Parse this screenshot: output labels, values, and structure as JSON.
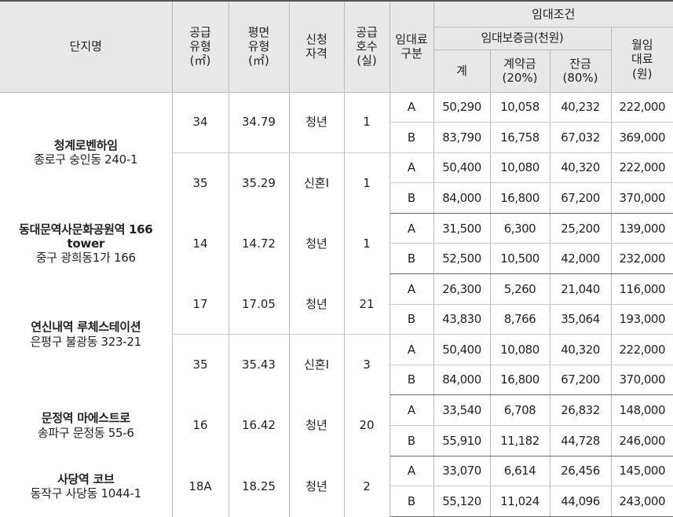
{
  "header": {
    "complex": "단지명",
    "supply_type": [
      "공급",
      "유형",
      "(㎡)"
    ],
    "floor_type": [
      "평면",
      "유형",
      "(㎡)"
    ],
    "eligibility": [
      "신청",
      "자격"
    ],
    "units": [
      "공급",
      "호수",
      "(실)"
    ],
    "lease_type": [
      "임대료",
      "구분"
    ],
    "lease_terms": "임대조건",
    "deposit_group": "임대보증금(천원)",
    "total": "계",
    "contract": [
      "계약금",
      "(20%)"
    ],
    "balance": [
      "잔금",
      "(80%)"
    ],
    "monthly": [
      "월임",
      "대료",
      "(원)"
    ]
  },
  "complexes": [
    {
      "name": "청계로벤하임",
      "address": "종로구 숭인동 240-1",
      "groups": [
        {
          "supply": "34",
          "floor": "34.79",
          "eligibility": "청년",
          "units": "1",
          "rows": [
            {
              "type": "A",
              "total": "50,290",
              "contract": "10,058",
              "balance": "40,232",
              "monthly": "222,000"
            },
            {
              "type": "B",
              "total": "83,790",
              "contract": "16,758",
              "balance": "67,032",
              "monthly": "369,000"
            }
          ]
        },
        {
          "supply": "35",
          "floor": "35.29",
          "eligibility": "신혼Ⅰ",
          "units": "1",
          "rows": [
            {
              "type": "A",
              "total": "50,400",
              "contract": "10,080",
              "balance": "40,320",
              "monthly": "222,000"
            },
            {
              "type": "B",
              "total": "84,000",
              "contract": "16,800",
              "balance": "67,200",
              "monthly": "370,000"
            }
          ]
        }
      ]
    },
    {
      "name": "동대문역사문화공원역 166 tower",
      "address": "중구 광희동1가 166",
      "groups": [
        {
          "supply": "14",
          "floor": "14.72",
          "eligibility": "청년",
          "units": "1",
          "rows": [
            {
              "type": "A",
              "total": "31,500",
              "contract": "6,300",
              "balance": "25,200",
              "monthly": "139,000"
            },
            {
              "type": "B",
              "total": "52,500",
              "contract": "10,500",
              "balance": "42,000",
              "monthly": "232,000"
            }
          ]
        }
      ]
    },
    {
      "name": "연신내역 루체스테이션",
      "address": "은평구 불광동 323-21",
      "groups": [
        {
          "supply": "17",
          "floor": "17.05",
          "eligibility": "청년",
          "units": "21",
          "rows": [
            {
              "type": "A",
              "total": "26,300",
              "contract": "5,260",
              "balance": "21,040",
              "monthly": "116,000"
            },
            {
              "type": "B",
              "total": "43,830",
              "contract": "8,766",
              "balance": "35,064",
              "monthly": "193,000"
            }
          ]
        },
        {
          "supply": "35",
          "floor": "35.43",
          "eligibility": "신혼Ⅰ",
          "units": "3",
          "rows": [
            {
              "type": "A",
              "total": "50,400",
              "contract": "10,080",
              "balance": "40,320",
              "monthly": "222,000"
            },
            {
              "type": "B",
              "total": "84,000",
              "contract": "16,800",
              "balance": "67,200",
              "monthly": "370,000"
            }
          ]
        }
      ]
    },
    {
      "name": "문정역 마에스트로",
      "address": "송파구 문정동 55-6",
      "groups": [
        {
          "supply": "16",
          "floor": "16.42",
          "eligibility": "청년",
          "units": "20",
          "rows": [
            {
              "type": "A",
              "total": "33,540",
              "contract": "6,708",
              "balance": "26,832",
              "monthly": "148,000"
            },
            {
              "type": "B",
              "total": "55,910",
              "contract": "11,182",
              "balance": "44,728",
              "monthly": "246,000"
            }
          ]
        }
      ]
    },
    {
      "name": "사당역 코브",
      "address": "동작구 사당동 1044-1",
      "groups": [
        {
          "supply": "18A",
          "floor": "18.25",
          "eligibility": "청년",
          "units": "2",
          "rows": [
            {
              "type": "A",
              "total": "33,070",
              "contract": "6,614",
              "balance": "26,456",
              "monthly": "145,000"
            },
            {
              "type": "B",
              "total": "55,120",
              "contract": "11,024",
              "balance": "44,096",
              "monthly": "243,000"
            }
          ]
        }
      ]
    }
  ]
}
